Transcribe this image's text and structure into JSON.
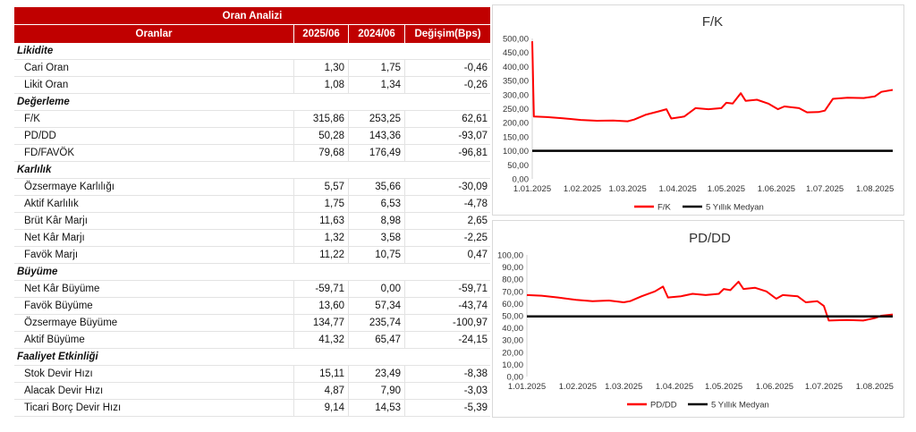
{
  "table": {
    "title": "Oran Analizi",
    "headers": [
      "Oranlar",
      "2025/06",
      "2024/06",
      "Değişim(Bps)"
    ],
    "sections": [
      {
        "name": "Likidite",
        "rows": [
          {
            "label": "Cari Oran",
            "v1": "1,30",
            "v2": "1,75",
            "v3": "-0,46"
          },
          {
            "label": "Likit Oran",
            "v1": "1,08",
            "v2": "1,34",
            "v3": "-0,26"
          }
        ]
      },
      {
        "name": "Değerleme",
        "rows": [
          {
            "label": "F/K",
            "v1": "315,86",
            "v2": "253,25",
            "v3": "62,61"
          },
          {
            "label": "PD/DD",
            "v1": "50,28",
            "v2": "143,36",
            "v3": "-93,07"
          },
          {
            "label": "FD/FAVÖK",
            "v1": "79,68",
            "v2": "176,49",
            "v3": "-96,81"
          }
        ]
      },
      {
        "name": "Karlılık",
        "rows": [
          {
            "label": "Özsermaye Karlılığı",
            "v1": "5,57",
            "v2": "35,66",
            "v3": "-30,09"
          },
          {
            "label": "Aktif Karlılık",
            "v1": "1,75",
            "v2": "6,53",
            "v3": "-4,78"
          },
          {
            "label": "Brüt Kâr Marjı",
            "v1": "11,63",
            "v2": "8,98",
            "v3": "2,65"
          },
          {
            "label": "Net Kâr Marjı",
            "v1": "1,32",
            "v2": "3,58",
            "v3": "-2,25"
          },
          {
            "label": "Favök Marjı",
            "v1": "11,22",
            "v2": "10,75",
            "v3": "0,47"
          }
        ]
      },
      {
        "name": "Büyüme",
        "rows": [
          {
            "label": "Net Kâr Büyüme",
            "v1": "-59,71",
            "v2": "0,00",
            "v3": "-59,71"
          },
          {
            "label": "Favök Büyüme",
            "v1": "13,60",
            "v2": "57,34",
            "v3": "-43,74"
          },
          {
            "label": "Özsermaye Büyüme",
            "v1": "134,77",
            "v2": "235,74",
            "v3": "-100,97"
          },
          {
            "label": "Aktif Büyüme",
            "v1": "41,32",
            "v2": "65,47",
            "v3": "-24,15"
          }
        ]
      },
      {
        "name": "Faaliyet Etkinliği",
        "rows": [
          {
            "label": "Stok Devir Hızı",
            "v1": "15,11",
            "v2": "23,49",
            "v3": "-8,38"
          },
          {
            "label": "Alacak Devir Hızı",
            "v1": "4,87",
            "v2": "7,90",
            "v3": "-3,03"
          },
          {
            "label": "Ticari Borç Devir Hızı",
            "v1": "9,14",
            "v2": "14,53",
            "v3": "-5,39"
          }
        ]
      }
    ]
  },
  "colors": {
    "header_bg": "#c00000",
    "series_red": "#ff0000",
    "series_black": "#000000"
  },
  "chart_data": [
    {
      "type": "line",
      "title": "F/K",
      "x_tick_labels": [
        "1.01.2025",
        "1.02.2025",
        "1.03.2025",
        "1.04.2025",
        "1.05.2025",
        "1.06.2025",
        "1.07.2025",
        "1.08.2025"
      ],
      "x_range": [
        "2025-01-01",
        "2025-08-12"
      ],
      "ylim": [
        0,
        500
      ],
      "y_tick_labels": [
        "0,00",
        "50,00",
        "100,00",
        "150,00",
        "200,00",
        "250,00",
        "300,00",
        "350,00",
        "400,00",
        "450,00",
        "500,00"
      ],
      "legend_position": "bottom",
      "grid": false,
      "series": [
        {
          "name": "F/K",
          "color": "#ff0000",
          "points": [
            [
              "2025-01-01",
              490
            ],
            [
              "2025-01-02",
              222
            ],
            [
              "2025-01-10",
              220
            ],
            [
              "2025-01-20",
              216
            ],
            [
              "2025-01-31",
              210
            ],
            [
              "2025-02-10",
              207
            ],
            [
              "2025-02-20",
              208
            ],
            [
              "2025-03-01",
              205
            ],
            [
              "2025-03-05",
              211
            ],
            [
              "2025-03-12",
              228
            ],
            [
              "2025-03-20",
              240
            ],
            [
              "2025-03-25",
              248
            ],
            [
              "2025-03-28",
              215
            ],
            [
              "2025-04-05",
              222
            ],
            [
              "2025-04-12",
              252
            ],
            [
              "2025-04-20",
              248
            ],
            [
              "2025-04-28",
              252
            ],
            [
              "2025-05-01",
              271
            ],
            [
              "2025-05-05",
              268
            ],
            [
              "2025-05-10",
              305
            ],
            [
              "2025-05-13",
              278
            ],
            [
              "2025-05-20",
              282
            ],
            [
              "2025-05-27",
              268
            ],
            [
              "2025-06-02",
              248
            ],
            [
              "2025-06-06",
              258
            ],
            [
              "2025-06-15",
              252
            ],
            [
              "2025-06-20",
              237
            ],
            [
              "2025-06-27",
              238
            ],
            [
              "2025-07-01",
              243
            ],
            [
              "2025-07-06",
              285
            ],
            [
              "2025-07-15",
              289
            ],
            [
              "2025-07-25",
              288
            ],
            [
              "2025-08-01",
              294
            ],
            [
              "2025-08-05",
              310
            ],
            [
              "2025-08-12",
              317
            ]
          ]
        },
        {
          "name": "5 Yıllık Medyan",
          "color": "#000000",
          "points": [
            [
              "2025-01-01",
              100
            ],
            [
              "2025-08-12",
              100
            ]
          ]
        }
      ]
    },
    {
      "type": "line",
      "title": "PD/DD",
      "x_tick_labels": [
        "1.01.2025",
        "1.02.2025",
        "1.03.2025",
        "1.04.2025",
        "1.05.2025",
        "1.06.2025",
        "1.07.2025",
        "1.08.2025"
      ],
      "x_range": [
        "2025-01-01",
        "2025-08-12"
      ],
      "ylim": [
        0,
        100
      ],
      "y_tick_labels": [
        "0,00",
        "10,00",
        "20,00",
        "30,00",
        "40,00",
        "50,00",
        "60,00",
        "70,00",
        "80,00",
        "90,00",
        "100,00"
      ],
      "legend_position": "bottom",
      "grid": false,
      "series": [
        {
          "name": "PD/DD",
          "color": "#ff0000",
          "points": [
            [
              "2025-01-01",
              67
            ],
            [
              "2025-01-10",
              66.5
            ],
            [
              "2025-01-20",
              65
            ],
            [
              "2025-01-31",
              63
            ],
            [
              "2025-02-10",
              62
            ],
            [
              "2025-02-20",
              62.5
            ],
            [
              "2025-03-01",
              61
            ],
            [
              "2025-03-05",
              62
            ],
            [
              "2025-03-12",
              66
            ],
            [
              "2025-03-20",
              70
            ],
            [
              "2025-03-25",
              74
            ],
            [
              "2025-03-28",
              65
            ],
            [
              "2025-04-05",
              66
            ],
            [
              "2025-04-12",
              68
            ],
            [
              "2025-04-20",
              67
            ],
            [
              "2025-04-28",
              68
            ],
            [
              "2025-05-01",
              72
            ],
            [
              "2025-05-05",
              71
            ],
            [
              "2025-05-10",
              78
            ],
            [
              "2025-05-13",
              72
            ],
            [
              "2025-05-20",
              73
            ],
            [
              "2025-05-27",
              70
            ],
            [
              "2025-06-02",
              64
            ],
            [
              "2025-06-06",
              67
            ],
            [
              "2025-06-15",
              66
            ],
            [
              "2025-06-20",
              61
            ],
            [
              "2025-06-27",
              62
            ],
            [
              "2025-07-01",
              58
            ],
            [
              "2025-07-04",
              46
            ],
            [
              "2025-07-15",
              46.5
            ],
            [
              "2025-07-25",
              46
            ],
            [
              "2025-08-01",
              48
            ],
            [
              "2025-08-05",
              50
            ],
            [
              "2025-08-12",
              51
            ]
          ]
        },
        {
          "name": "5 Yıllık Medyan",
          "color": "#000000",
          "points": [
            [
              "2025-01-01",
              49.5
            ],
            [
              "2025-08-12",
              49.5
            ]
          ]
        }
      ]
    }
  ]
}
